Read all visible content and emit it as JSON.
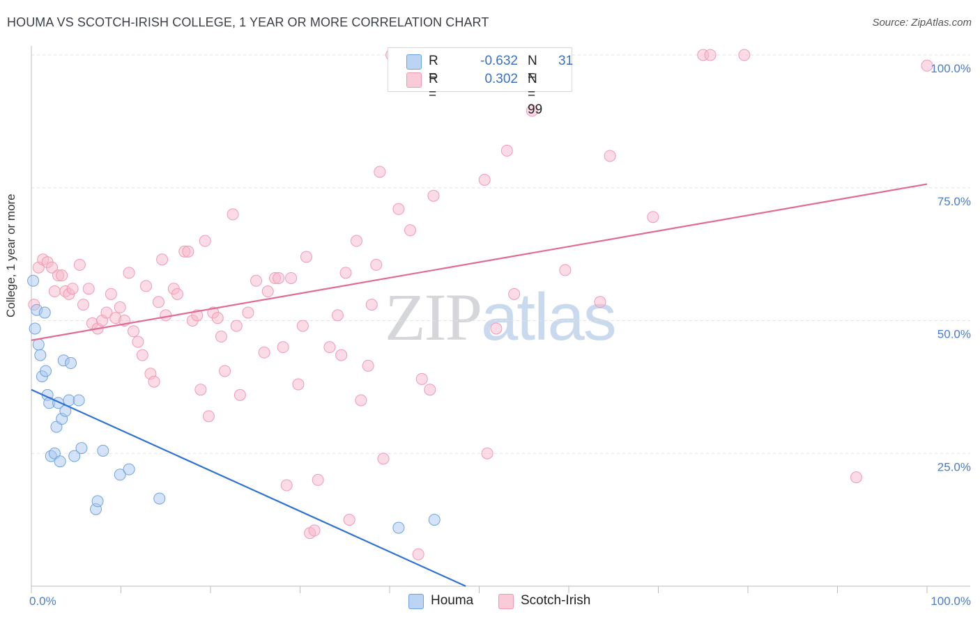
{
  "header": {
    "title": "HOUMA VS SCOTCH-IRISH COLLEGE, 1 YEAR OR MORE CORRELATION CHART",
    "source": "Source: ZipAtlas.com"
  },
  "watermark": {
    "zip": "ZIP",
    "atlas": "atlas"
  },
  "legend": {
    "rows": [
      {
        "r_label": "R =",
        "r_value": "-0.632",
        "n_label": "N =",
        "n_value": "31",
        "color": "#a9c8f0"
      },
      {
        "r_label": "R =",
        "r_value": "0.302",
        "n_label": "N = 99",
        "n_value": "",
        "color": "#f7b8cb"
      }
    ]
  },
  "bottom_legend": [
    {
      "label": "Houma",
      "color": "#a9c8f0"
    },
    {
      "label": "Scotch-Irish",
      "color": "#f7b8cb"
    }
  ],
  "chart_data": {
    "type": "scatter",
    "title": "HOUMA VS SCOTCH-IRISH COLLEGE, 1 YEAR OR MORE CORRELATION CHART",
    "xlabel": "",
    "ylabel": "College, 1 year or more",
    "xlim": [
      0,
      100
    ],
    "ylim": [
      0,
      100
    ],
    "x_tick_labels": [
      "0.0%",
      "100.0%"
    ],
    "y_ticks": [
      25,
      50,
      75,
      100
    ],
    "y_tick_labels": [
      "25.0%",
      "50.0%",
      "75.0%",
      "100.0%"
    ],
    "grid": true,
    "legend_placement": "top-center",
    "series": [
      {
        "name": "Houma",
        "color": "#6fa3e0",
        "fill": "#a9c8f0",
        "line_color": "#2f72d0",
        "trend": {
          "x": [
            0,
            48.5
          ],
          "y": [
            37.0,
            0
          ]
        },
        "points": [
          [
            0.2,
            57.5
          ],
          [
            0.4,
            48.5
          ],
          [
            0.6,
            52.0
          ],
          [
            0.8,
            45.5
          ],
          [
            1.0,
            43.5
          ],
          [
            1.2,
            39.5
          ],
          [
            1.5,
            51.5
          ],
          [
            1.6,
            40.5
          ],
          [
            1.8,
            36.0
          ],
          [
            2.0,
            34.5
          ],
          [
            2.2,
            24.5
          ],
          [
            2.6,
            25.0
          ],
          [
            2.8,
            30.0
          ],
          [
            3.0,
            34.5
          ],
          [
            3.2,
            23.5
          ],
          [
            3.4,
            31.5
          ],
          [
            3.6,
            42.5
          ],
          [
            3.8,
            33.0
          ],
          [
            4.2,
            35.0
          ],
          [
            4.4,
            42.0
          ],
          [
            4.8,
            24.5
          ],
          [
            5.3,
            35.0
          ],
          [
            5.6,
            26.0
          ],
          [
            7.2,
            14.5
          ],
          [
            7.4,
            16.0
          ],
          [
            8.0,
            25.5
          ],
          [
            9.9,
            21.0
          ],
          [
            10.9,
            22.0
          ],
          [
            14.3,
            16.5
          ],
          [
            41.0,
            11.0
          ],
          [
            45.0,
            12.5
          ]
        ]
      },
      {
        "name": "Scotch-Irish",
        "color": "#f09ab3",
        "fill": "#f7b8cb",
        "line_color": "#e36a92",
        "trend": {
          "x": [
            0,
            100
          ],
          "y": [
            46.3,
            75.7
          ]
        },
        "points": [
          [
            0.3,
            53.0
          ],
          [
            0.8,
            60.0
          ],
          [
            1.3,
            61.5
          ],
          [
            1.8,
            61.0
          ],
          [
            2.3,
            60.0
          ],
          [
            2.6,
            55.5
          ],
          [
            3.0,
            58.5
          ],
          [
            3.4,
            58.5
          ],
          [
            3.8,
            55.5
          ],
          [
            4.2,
            55.0
          ],
          [
            4.6,
            56.0
          ],
          [
            5.4,
            60.5
          ],
          [
            5.8,
            53.0
          ],
          [
            6.4,
            56.0
          ],
          [
            6.8,
            49.5
          ],
          [
            7.4,
            48.5
          ],
          [
            7.9,
            50.0
          ],
          [
            8.4,
            51.5
          ],
          [
            8.9,
            55.0
          ],
          [
            9.4,
            50.5
          ],
          [
            9.9,
            52.5
          ],
          [
            10.4,
            50.0
          ],
          [
            10.9,
            59.0
          ],
          [
            11.4,
            48.0
          ],
          [
            11.9,
            46.0
          ],
          [
            12.4,
            43.5
          ],
          [
            12.8,
            56.5
          ],
          [
            13.3,
            40.0
          ],
          [
            13.7,
            38.5
          ],
          [
            14.2,
            53.5
          ],
          [
            14.6,
            61.5
          ],
          [
            15.0,
            51.0
          ],
          [
            15.9,
            56.0
          ],
          [
            16.3,
            55.0
          ],
          [
            17.1,
            63.0
          ],
          [
            17.5,
            63.0
          ],
          [
            18.0,
            50.0
          ],
          [
            18.5,
            51.0
          ],
          [
            18.9,
            37.0
          ],
          [
            19.4,
            65.0
          ],
          [
            19.8,
            32.0
          ],
          [
            20.3,
            51.5
          ],
          [
            20.8,
            50.5
          ],
          [
            21.2,
            47.0
          ],
          [
            21.6,
            40.5
          ],
          [
            22.5,
            70.0
          ],
          [
            22.9,
            49.0
          ],
          [
            23.3,
            36.0
          ],
          [
            24.2,
            51.5
          ],
          [
            25.1,
            57.5
          ],
          [
            26.0,
            44.0
          ],
          [
            26.4,
            55.5
          ],
          [
            27.2,
            58.0
          ],
          [
            27.6,
            58.0
          ],
          [
            28.1,
            45.0
          ],
          [
            28.5,
            19.0
          ],
          [
            29.0,
            58.0
          ],
          [
            29.8,
            38.0
          ],
          [
            30.3,
            49.0
          ],
          [
            30.7,
            62.0
          ],
          [
            31.1,
            10.0
          ],
          [
            31.6,
            10.5
          ],
          [
            32.0,
            20.0
          ],
          [
            33.3,
            45.0
          ],
          [
            34.2,
            51.0
          ],
          [
            34.6,
            43.5
          ],
          [
            35.1,
            59.0
          ],
          [
            35.5,
            12.5
          ],
          [
            36.3,
            65.0
          ],
          [
            36.8,
            35.0
          ],
          [
            37.6,
            41.5
          ],
          [
            38.0,
            53.0
          ],
          [
            38.5,
            60.5
          ],
          [
            38.9,
            78.0
          ],
          [
            39.3,
            24.0
          ],
          [
            40.2,
            100.0
          ],
          [
            40.6,
            100.0
          ],
          [
            41.0,
            71.0
          ],
          [
            42.3,
            67.0
          ],
          [
            43.2,
            6.0
          ],
          [
            43.6,
            39.0
          ],
          [
            44.5,
            37.0
          ],
          [
            44.9,
            73.5
          ],
          [
            50.0,
            100.0
          ],
          [
            50.6,
            76.5
          ],
          [
            50.9,
            25.0
          ],
          [
            51.9,
            48.5
          ],
          [
            53.1,
            82.0
          ],
          [
            53.9,
            55.0
          ],
          [
            55.9,
            89.5
          ],
          [
            59.6,
            59.5
          ],
          [
            63.5,
            53.5
          ],
          [
            64.6,
            81.0
          ],
          [
            69.4,
            69.5
          ],
          [
            75.0,
            100.0
          ],
          [
            75.8,
            100.0
          ],
          [
            79.6,
            100.0
          ],
          [
            92.1,
            20.5
          ],
          [
            100.0,
            98.0
          ]
        ]
      }
    ]
  }
}
